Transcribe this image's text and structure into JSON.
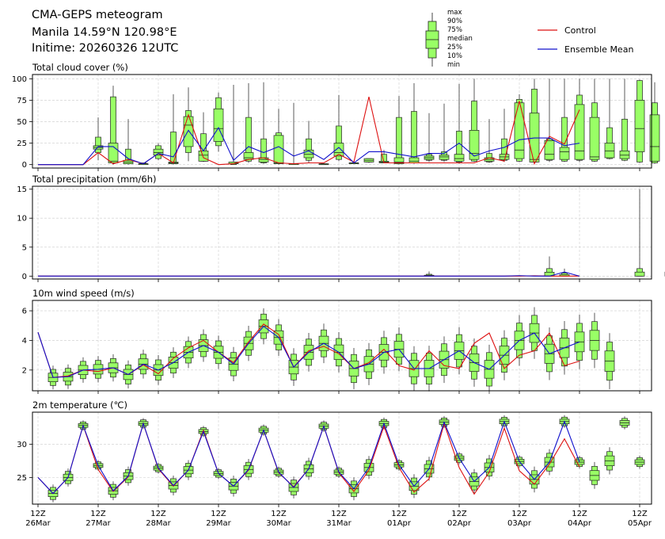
{
  "header": {
    "title": "CMA-GEPS meteogram",
    "location": "Manila 14.59°N 120.98°E",
    "initime": "Initime: 20260326 12UTC"
  },
  "legend": {
    "box_labels": [
      "max",
      "90%",
      "75%",
      "median",
      "25%",
      "10%",
      "min"
    ],
    "lines": [
      {
        "name": "Control",
        "color": "#dd1111"
      },
      {
        "name": "Ensemble Mean",
        "color": "#1111cc"
      }
    ]
  },
  "colors": {
    "box_fill": "#99ff66",
    "box_edge": "#222222",
    "control": "#dd1111",
    "mean": "#1111cc",
    "grid": "#cccccc"
  },
  "chart_data": [
    {
      "type": "line",
      "title": "Total cloud cover (%)",
      "ylim": [
        -4,
        105
      ],
      "yticks": [
        0,
        25,
        50,
        75,
        100
      ],
      "xtick_labels": [
        [
          "12Z",
          "26Mar"
        ],
        [
          "12Z",
          "27Mar"
        ],
        [
          "12Z",
          "28Mar"
        ],
        [
          "12Z",
          "29Mar"
        ],
        [
          "12Z",
          "30Mar"
        ],
        [
          "12Z",
          "31Mar"
        ],
        [
          "12Z",
          "01Apr"
        ],
        [
          "12Z",
          "02Apr"
        ],
        [
          "12Z",
          "03Apr"
        ],
        [
          "12Z",
          "04Apr"
        ],
        [
          "12Z",
          "05Apr"
        ]
      ],
      "step_hours": 6,
      "control": [
        0,
        0,
        0,
        0,
        14,
        1,
        6,
        1,
        13,
        2,
        58,
        8,
        0,
        1,
        6,
        8,
        2,
        1,
        2,
        2,
        12,
        3,
        79,
        2,
        2,
        2,
        2,
        2,
        2,
        2,
        8,
        4,
        74,
        1,
        33,
        24,
        64,
        5,
        32,
        16,
        79,
        0
      ],
      "mean": [
        0,
        0,
        0,
        0,
        21,
        21,
        7,
        1,
        13,
        9,
        40,
        16,
        43,
        5,
        21,
        14,
        21,
        10,
        16,
        6,
        20,
        2,
        15,
        15,
        12,
        9,
        13,
        13,
        25,
        10,
        16,
        20,
        29,
        31,
        31,
        22,
        25,
        20,
        29,
        38,
        33,
        22,
        47,
        37
      ],
      "boxes": [
        null,
        null,
        null,
        null,
        {
          "min": 5,
          "p10": 14,
          "p25": 18,
          "median": 20,
          "p75": 22,
          "p90": 32,
          "max": 55
        },
        {
          "min": 0,
          "p10": 2,
          "p25": 2,
          "median": 4,
          "p75": 25,
          "p90": 79,
          "max": 92
        },
        {
          "min": 0,
          "p10": 1,
          "p25": 1,
          "median": 3,
          "p75": 5,
          "p90": 18,
          "max": 53
        },
        {
          "min": 0,
          "p10": 0,
          "p25": 0,
          "median": 1,
          "p75": 1,
          "p90": 2,
          "max": 2
        },
        {
          "min": 5,
          "p10": 7,
          "p25": 11,
          "median": 14,
          "p75": 18,
          "p90": 22,
          "max": 25
        },
        {
          "min": 0,
          "p10": 1,
          "p25": 1,
          "median": 2,
          "p75": 3,
          "p90": 38,
          "max": 82
        },
        {
          "min": 4,
          "p10": 14,
          "p25": 21,
          "median": 46,
          "p75": 56,
          "p90": 63,
          "max": 90
        },
        {
          "min": 3,
          "p10": 4,
          "p25": 4,
          "median": 11,
          "p75": 16,
          "p90": 36,
          "max": 61
        },
        {
          "min": 15,
          "p10": 22,
          "p25": 27,
          "median": 42,
          "p75": 65,
          "p90": 78,
          "max": 84
        },
        {
          "min": 0,
          "p10": 0,
          "p25": 1,
          "median": 1,
          "p75": 3,
          "p90": 3,
          "max": 93
        },
        {
          "min": 2,
          "p10": 4,
          "p25": 6,
          "median": 8,
          "p75": 14,
          "p90": 55,
          "max": 95
        },
        {
          "min": 1,
          "p10": 2,
          "p25": 3,
          "median": 6,
          "p75": 8,
          "p90": 30,
          "max": 96
        },
        {
          "min": 0,
          "p10": 1,
          "p25": 1,
          "median": 2,
          "p75": 34,
          "p90": 37,
          "max": 65
        },
        {
          "min": 0,
          "p10": 0,
          "p25": 0,
          "median": 1,
          "p75": 1,
          "p90": 1,
          "max": 72
        },
        {
          "min": 2,
          "p10": 5,
          "p25": 8,
          "median": 12,
          "p75": 17,
          "p90": 30,
          "max": 51
        },
        {
          "min": 0,
          "p10": 0,
          "p25": 0,
          "median": 0,
          "p75": 1,
          "p90": 1,
          "max": 1
        },
        {
          "min": 4,
          "p10": 6,
          "p25": 10,
          "median": 14,
          "p75": 25,
          "p90": 45,
          "max": 81
        },
        {
          "min": 1,
          "p10": 1,
          "p25": 1,
          "median": 2,
          "p75": 2,
          "p90": 2,
          "max": 2
        },
        {
          "min": 2,
          "p10": 3,
          "p25": 3,
          "median": 5,
          "p75": 7,
          "p90": 7,
          "max": 7
        },
        {
          "min": 2,
          "p10": 2,
          "p25": 2,
          "median": 3,
          "p75": 4,
          "p90": 12,
          "max": 17
        },
        {
          "min": 0,
          "p10": 1,
          "p25": 1,
          "median": 3,
          "p75": 8,
          "p90": 55,
          "max": 80
        },
        {
          "min": 1,
          "p10": 2,
          "p25": 2,
          "median": 4,
          "p75": 8,
          "p90": 62,
          "max": 95
        },
        {
          "min": 3,
          "p10": 5,
          "p25": 6,
          "median": 8,
          "p75": 10,
          "p90": 12,
          "max": 60
        },
        {
          "min": 3,
          "p10": 5,
          "p25": 6,
          "median": 9,
          "p75": 11,
          "p90": 15,
          "max": 71
        },
        {
          "min": 1,
          "p10": 3,
          "p25": 4,
          "median": 7,
          "p75": 12,
          "p90": 39,
          "max": 94
        },
        {
          "min": 3,
          "p10": 4,
          "p25": 6,
          "median": 13,
          "p75": 40,
          "p90": 74,
          "max": 100
        },
        {
          "min": 2,
          "p10": 3,
          "p25": 4,
          "median": 6,
          "p75": 8,
          "p90": 13,
          "max": 53
        },
        {
          "min": 3,
          "p10": 5,
          "p25": 6,
          "median": 9,
          "p75": 12,
          "p90": 30,
          "max": 65
        },
        {
          "min": 3,
          "p10": 4,
          "p25": 7,
          "median": 17,
          "p75": 72,
          "p90": 76,
          "max": 82
        },
        {
          "min": 1,
          "p10": 3,
          "p25": 3,
          "median": 6,
          "p75": 60,
          "p90": 88,
          "max": 100
        },
        {
          "min": 3,
          "p10": 5,
          "p25": 6,
          "median": 12,
          "p75": 28,
          "p90": 30,
          "max": 100
        },
        {
          "min": 3,
          "p10": 4,
          "p25": 6,
          "median": 15,
          "p75": 20,
          "p90": 55,
          "max": 100
        },
        {
          "min": 3,
          "p10": 5,
          "p25": 6,
          "median": 16,
          "p75": 70,
          "p90": 81,
          "max": 100
        },
        {
          "min": 3,
          "p10": 4,
          "p25": 6,
          "median": 9,
          "p75": 55,
          "p90": 72,
          "max": 100
        },
        {
          "min": 6,
          "p10": 7,
          "p25": 8,
          "median": 16,
          "p75": 25,
          "p90": 43,
          "max": 100
        },
        {
          "min": 4,
          "p10": 5,
          "p25": 7,
          "median": 11,
          "p75": 16,
          "p90": 53,
          "max": 100
        },
        {
          "min": 2,
          "p10": 3,
          "p25": 15,
          "median": 42,
          "p75": 75,
          "p90": 98,
          "max": 99
        },
        {
          "min": 1,
          "p10": 2,
          "p25": 4,
          "median": 21,
          "p75": 58,
          "p90": 72,
          "max": 96
        }
      ]
    },
    {
      "type": "line",
      "title": "Total precipitation (mm/6h)",
      "ylim": [
        -0.5,
        15.5
      ],
      "yticks": [
        0,
        5,
        10,
        15
      ],
      "step_hours": 6,
      "control": [
        0,
        0,
        0,
        0,
        0,
        0,
        0,
        0,
        0,
        0,
        0,
        0,
        0,
        0,
        0,
        0,
        0,
        0,
        0,
        0,
        0,
        0,
        0,
        0,
        0,
        0,
        0,
        0,
        0,
        0,
        0,
        0,
        0,
        0.05,
        0,
        0,
        0,
        0,
        0,
        0,
        0,
        0,
        0,
        0.05,
        0,
        0,
        0,
        0,
        0,
        0,
        0,
        0,
        0,
        0,
        0.05,
        0,
        0,
        0,
        0.1,
        0,
        0,
        0,
        0.3,
        0,
        0,
        0,
        0.2,
        0
      ],
      "mean": [
        0,
        0,
        0,
        0,
        0,
        0,
        0,
        0,
        0,
        0,
        0,
        0,
        0,
        0,
        0,
        0,
        0,
        0,
        0,
        0,
        0,
        0,
        0,
        0,
        0,
        0,
        0,
        0,
        0,
        0,
        0,
        0,
        0.08,
        0,
        0,
        0.7,
        0,
        0,
        0,
        0,
        0.7,
        0,
        0.6
      ],
      "boxes": "mostly zero; notable: 02Apr 12Z max 0.8; 03Apr 06Z max 3.4, p90 1.3; 04Apr 00Z max 15, p90 1.0; 05Apr 12Z max 4.7, p90 1.3"
    },
    {
      "type": "line",
      "title": "10m wind speed (m/s)",
      "ylim": [
        0.6,
        6.7
      ],
      "yticks": [
        2,
        4,
        6
      ],
      "step_hours": 6,
      "control": [
        4.55,
        1.5,
        1.6,
        2.0,
        1.9,
        2.15,
        1.7,
        2.35,
        1.75,
        2.8,
        3.5,
        4.0,
        3.2,
        2.5,
        3.9,
        5.1,
        4.4,
        2.2,
        3.3,
        3.6,
        3.1,
        2.1,
        2.5,
        3.4,
        2.3,
        2.0,
        3.3,
        2.3,
        2.1,
        3.8,
        4.5,
        2.1,
        3.0,
        3.3,
        4.5,
        2.3,
        2.6,
        3.2,
        2.6
      ],
      "mean": [
        4.55,
        1.5,
        1.55,
        2.0,
        2.05,
        2.15,
        1.7,
        2.4,
        2.0,
        2.5,
        3.2,
        3.65,
        3.2,
        2.4,
        3.8,
        4.95,
        4.2,
        2.2,
        3.2,
        3.8,
        3.2,
        2.1,
        2.4,
        3.2,
        3.4,
        2.1,
        2.1,
        2.7,
        3.3,
        2.5,
        2.05,
        3.0,
        4.0,
        4.5,
        3.1,
        3.5,
        3.9,
        4.0,
        2.6
      ],
      "boxes_note": "ensemble boxes at each 6h step spanning roughly ±0.3-1.5 m/s around median; widest spread after 02Apr"
    },
    {
      "type": "line",
      "title": "2m temperature (℃)",
      "ylim": [
        21,
        34.8
      ],
      "yticks": [
        25,
        30
      ],
      "step_hours": 6,
      "control": [
        25.0,
        22.6,
        25.0,
        32.8,
        26.2,
        22.9,
        25.1,
        33.1,
        26.3,
        23.7,
        26.1,
        32.1,
        25.6,
        23.7,
        26.1,
        32.1,
        25.7,
        23.6,
        26.3,
        32.7,
        25.7,
        22.9,
        26.1,
        32.7,
        26.5,
        22.8,
        24.8,
        33.1,
        26.5,
        22.5,
        25.8,
        32.4,
        26.0,
        24.0,
        27.0,
        30.8,
        26.6,
        25.2,
        27.5,
        32.0,
        25.9
      ],
      "mean": [
        25.0,
        22.6,
        25.0,
        32.8,
        26.8,
        23.0,
        25.2,
        33.1,
        26.4,
        23.8,
        26.1,
        31.9,
        25.6,
        23.7,
        26.2,
        32.1,
        25.8,
        23.5,
        26.3,
        32.7,
        25.8,
        23.3,
        26.5,
        33.1,
        26.9,
        23.7,
        26.3,
        33.3,
        27.9,
        24.4,
        26.5,
        33.4,
        27.4,
        24.7,
        27.3,
        33.4,
        27.3,
        25.3,
        27.5,
        33.2,
        27.3
      ]
    }
  ]
}
